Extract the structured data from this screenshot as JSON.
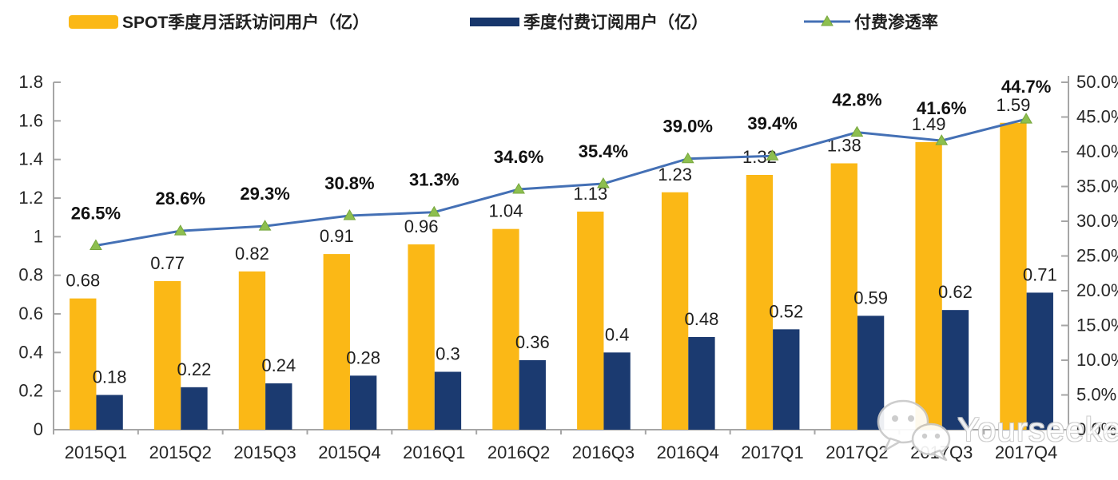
{
  "legend": [
    {
      "label": "SPOT季度月活跃访问用户（亿）",
      "type": "bar",
      "color": "#FBB816"
    },
    {
      "label": "季度付费订阅用户（亿）",
      "type": "bar",
      "color": "#17366B"
    },
    {
      "label": "付费渗透率",
      "type": "line",
      "color": "#4470B5",
      "marker_color": "#8DBF4F"
    }
  ],
  "watermark": {
    "text": "Yourseeker",
    "icon": "wechat-icon"
  },
  "chart_data": {
    "type": "combo-bar-line",
    "categories": [
      "2015Q1",
      "2015Q2",
      "2015Q3",
      "2015Q4",
      "2016Q1",
      "2016Q2",
      "2016Q3",
      "2016Q4",
      "2017Q1",
      "2017Q2",
      "2017Q3",
      "2017Q4"
    ],
    "series": [
      {
        "name": "SPOT季度月活跃访问用户（亿）",
        "type": "bar",
        "axis": "left",
        "color": "#FBB816",
        "values": [
          0.68,
          0.77,
          0.82,
          0.91,
          0.96,
          1.04,
          1.13,
          1.23,
          1.32,
          1.38,
          1.49,
          1.59
        ],
        "labels": [
          "0.68",
          "0.77",
          "0.82",
          "0.91",
          "0.96",
          "1.04",
          "1.13",
          "1.23",
          "1.32",
          "1.38",
          "1.49",
          "1.59"
        ]
      },
      {
        "name": "季度付费订阅用户（亿）",
        "type": "bar",
        "axis": "left",
        "color": "#1B3A70",
        "values": [
          0.18,
          0.22,
          0.24,
          0.28,
          0.3,
          0.36,
          0.4,
          0.48,
          0.52,
          0.59,
          0.62,
          0.71
        ],
        "labels": [
          "0.18",
          "0.22",
          "0.24",
          "0.28",
          "0.3",
          "0.36",
          "0.4",
          "0.48",
          "0.52",
          "0.59",
          "0.62",
          "0.71"
        ]
      },
      {
        "name": "付费渗透率",
        "type": "line",
        "axis": "right",
        "color": "#4470B5",
        "marker": "triangle",
        "marker_color": "#8DBF4F",
        "values": [
          26.5,
          28.6,
          29.3,
          30.8,
          31.3,
          34.6,
          35.4,
          39.0,
          39.4,
          42.8,
          41.6,
          44.7
        ],
        "labels": [
          "26.5%",
          "28.6%",
          "29.3%",
          "30.8%",
          "31.3%",
          "34.6%",
          "35.4%",
          "39.0%",
          "39.4%",
          "42.8%",
          "41.6%",
          "44.7%"
        ]
      }
    ],
    "left_axis": {
      "min": 0,
      "max": 1.8,
      "step": 0.2,
      "ticks": [
        "1.8",
        "1.6",
        "1.4",
        "1.2",
        "1",
        "0.8",
        "0.6",
        "0.4",
        "0.2",
        "0"
      ]
    },
    "right_axis": {
      "min": 0,
      "max": 50,
      "step": 5,
      "ticks": [
        "50.0%",
        "45.0%",
        "40.0%",
        "35.0%",
        "30.0%",
        "25.0%",
        "20.0%",
        "15.0%",
        "10.0%",
        "5.0%",
        "0.0%"
      ]
    },
    "grid": false,
    "legend_position": "top"
  }
}
